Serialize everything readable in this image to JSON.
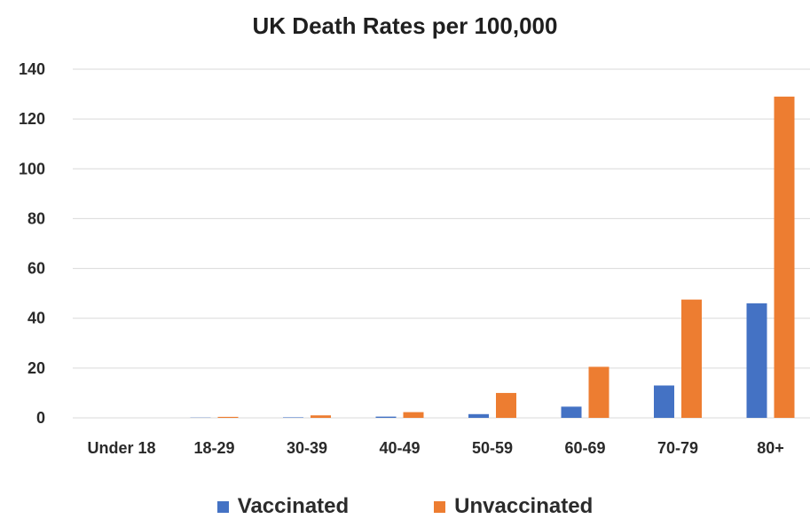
{
  "chart_data": {
    "type": "bar",
    "title": "UK Death Rates per 100,000",
    "xlabel": "",
    "ylabel": "",
    "categories": [
      "Under 18",
      "18-29",
      "30-39",
      "40-49",
      "50-59",
      "60-69",
      "70-79",
      "80+"
    ],
    "series": [
      {
        "name": "Vaccinated",
        "color": "#4472C4",
        "values": [
          0,
          0.1,
          0.2,
          0.5,
          1.5,
          4.5,
          13,
          46
        ]
      },
      {
        "name": "Unvaccinated",
        "color": "#ED7D31",
        "values": [
          0,
          0.4,
          1.0,
          2.3,
          10,
          20.5,
          47.5,
          129
        ]
      }
    ],
    "ylim": [
      0,
      140
    ],
    "yticks": [
      0,
      20,
      40,
      60,
      80,
      100,
      120,
      140
    ],
    "grid": true,
    "legend_position": "bottom"
  }
}
